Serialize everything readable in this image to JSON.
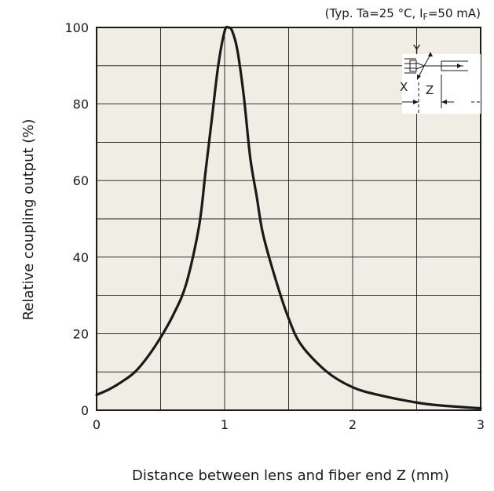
{
  "chart_data": {
    "type": "line",
    "condition_prefix": "(Typ. Ta=25 °C, I",
    "condition_sub": "F",
    "condition_suffix": "=50 mA)",
    "xlabel": "Distance between lens and fiber end Z (mm)",
    "ylabel": "Relative coupling output (%)",
    "xlim": [
      0,
      3
    ],
    "ylim": [
      0,
      100
    ],
    "x_ticks": [
      "0",
      "1",
      "2",
      "3"
    ],
    "y_ticks": [
      "0",
      "20",
      "40",
      "60",
      "80",
      "100"
    ],
    "grid": true,
    "plot_background": "#f0ede4",
    "line_color": "#1a1a1a",
    "inset": {
      "labels": [
        "Y",
        "X",
        "Z"
      ],
      "description": "lens-fiber axis diagram"
    },
    "series": [
      {
        "x": [
          0,
          0.1,
          0.2,
          0.3,
          0.4,
          0.5,
          0.6,
          0.7,
          0.8,
          0.85,
          0.9,
          0.95,
          1.0,
          1.03,
          1.06,
          1.1,
          1.15,
          1.2,
          1.25,
          1.3,
          1.4,
          1.5,
          1.6,
          1.8,
          2.0,
          2.2,
          2.5,
          2.7,
          3.0
        ],
        "y": [
          4,
          5.5,
          7.5,
          10,
          14,
          19,
          25,
          33,
          48,
          62,
          76,
          90,
          99,
          100,
          99,
          94,
          82,
          66,
          56,
          46,
          34,
          24,
          17,
          10,
          6,
          4,
          2,
          1.2,
          0.5
        ]
      }
    ]
  }
}
